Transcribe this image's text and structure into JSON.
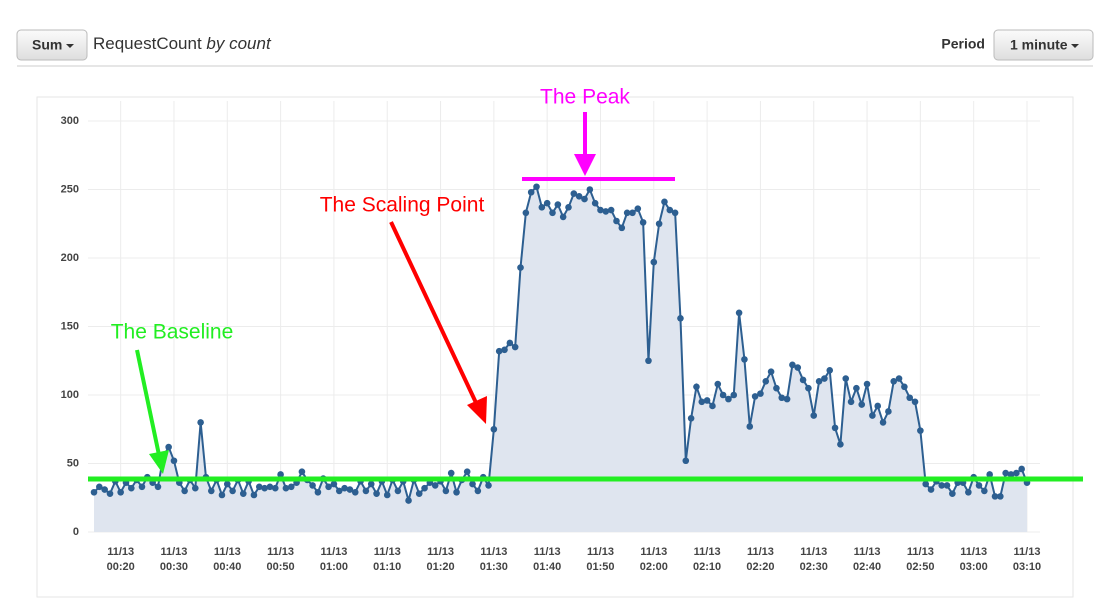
{
  "header": {
    "stat": "Sum",
    "metric": "RequestCount",
    "unit": "by count",
    "period_label": "Period",
    "period": "1 minute"
  },
  "chart_data": {
    "type": "line",
    "annotations": [
      {
        "text": "The Peak",
        "color": "#ff00ff"
      },
      {
        "text": "The Scaling Point",
        "color": "#ff0000"
      },
      {
        "text": "The Baseline",
        "color": "#22ee22"
      }
    ],
    "x": [
      "11/13 00:15",
      "11/13 00:16",
      "11/13 00:17",
      "11/13 00:18",
      "11/13 00:19",
      "11/13 00:20",
      "11/13 00:21",
      "11/13 00:22",
      "11/13 00:23",
      "11/13 00:24",
      "11/13 00:25",
      "11/13 00:26",
      "11/13 00:27",
      "11/13 00:28",
      "11/13 00:29",
      "11/13 00:30",
      "11/13 00:31",
      "11/13 00:32",
      "11/13 00:33",
      "11/13 00:34",
      "11/13 00:35",
      "11/13 00:36",
      "11/13 00:37",
      "11/13 00:38",
      "11/13 00:39",
      "11/13 00:40",
      "11/13 00:41",
      "11/13 00:42",
      "11/13 00:43",
      "11/13 00:44",
      "11/13 00:45",
      "11/13 00:46",
      "11/13 00:47",
      "11/13 00:48",
      "11/13 00:49",
      "11/13 00:50",
      "11/13 00:51",
      "11/13 00:52",
      "11/13 00:53",
      "11/13 00:54",
      "11/13 00:55",
      "11/13 00:56",
      "11/13 00:57",
      "11/13 00:58",
      "11/13 00:59",
      "11/13 01:00",
      "11/13 01:01",
      "11/13 01:02",
      "11/13 01:03",
      "11/13 01:04",
      "11/13 01:05",
      "11/13 01:06",
      "11/13 01:07",
      "11/13 01:08",
      "11/13 01:09",
      "11/13 01:10",
      "11/13 01:11",
      "11/13 01:12",
      "11/13 01:13",
      "11/13 01:14",
      "11/13 01:15",
      "11/13 01:16",
      "11/13 01:17",
      "11/13 01:18",
      "11/13 01:19",
      "11/13 01:20",
      "11/13 01:21",
      "11/13 01:22",
      "11/13 01:23",
      "11/13 01:24",
      "11/13 01:25",
      "11/13 01:26",
      "11/13 01:27",
      "11/13 01:28",
      "11/13 01:29",
      "11/13 01:30",
      "11/13 01:31",
      "11/13 01:32",
      "11/13 01:33",
      "11/13 01:34",
      "11/13 01:35",
      "11/13 01:36",
      "11/13 01:37",
      "11/13 01:38",
      "11/13 01:39",
      "11/13 01:40",
      "11/13 01:41",
      "11/13 01:42",
      "11/13 01:43",
      "11/13 01:44",
      "11/13 01:45",
      "11/13 01:46",
      "11/13 01:47",
      "11/13 01:48",
      "11/13 01:49",
      "11/13 01:50",
      "11/13 01:51",
      "11/13 01:52",
      "11/13 01:53",
      "11/13 01:54",
      "11/13 01:55",
      "11/13 01:56",
      "11/13 01:57",
      "11/13 01:58",
      "11/13 01:59",
      "11/13 02:00",
      "11/13 02:01",
      "11/13 02:02",
      "11/13 02:03",
      "11/13 02:04",
      "11/13 02:05",
      "11/13 02:06",
      "11/13 02:07",
      "11/13 02:08",
      "11/13 02:09",
      "11/13 02:10",
      "11/13 02:11",
      "11/13 02:12",
      "11/13 02:13",
      "11/13 02:14",
      "11/13 02:15",
      "11/13 02:16",
      "11/13 02:17",
      "11/13 02:18",
      "11/13 02:19",
      "11/13 02:20",
      "11/13 02:21",
      "11/13 02:22",
      "11/13 02:23",
      "11/13 02:24",
      "11/13 02:25",
      "11/13 02:26",
      "11/13 02:27",
      "11/13 02:28",
      "11/13 02:29",
      "11/13 02:30",
      "11/13 02:31",
      "11/13 02:32",
      "11/13 02:33",
      "11/13 02:34",
      "11/13 02:35",
      "11/13 02:36",
      "11/13 02:37",
      "11/13 02:38",
      "11/13 02:39",
      "11/13 02:40",
      "11/13 02:41",
      "11/13 02:42",
      "11/13 02:43",
      "11/13 02:44",
      "11/13 02:45",
      "11/13 02:46",
      "11/13 02:47",
      "11/13 02:48",
      "11/13 02:49",
      "11/13 02:50",
      "11/13 02:51",
      "11/13 02:52",
      "11/13 02:53",
      "11/13 02:54",
      "11/13 02:55",
      "11/13 02:56",
      "11/13 02:57",
      "11/13 02:58",
      "11/13 02:59",
      "11/13 03:00",
      "11/13 03:01",
      "11/13 03:02",
      "11/13 03:03",
      "11/13 03:04",
      "11/13 03:05",
      "11/13 03:06",
      "11/13 03:07",
      "11/13 03:08",
      "11/13 03:09",
      "11/13 03:10"
    ],
    "values": [
      29,
      33,
      31,
      28,
      37,
      29,
      36,
      32,
      38,
      33,
      40,
      36,
      33,
      55,
      62,
      52,
      36,
      30,
      38,
      32,
      80,
      40,
      30,
      38,
      27,
      35,
      30,
      38,
      28,
      37,
      27,
      33,
      32,
      33,
      32,
      42,
      32,
      33,
      36,
      44,
      38,
      34,
      29,
      39,
      33,
      35,
      30,
      32,
      31,
      29,
      37,
      30,
      35,
      28,
      37,
      27,
      38,
      30,
      37,
      23,
      38,
      28,
      32,
      36,
      34,
      37,
      30,
      43,
      29,
      38,
      44,
      35,
      30,
      40,
      34,
      75,
      132,
      133,
      138,
      135,
      193,
      233,
      248,
      252,
      237,
      240,
      233,
      239,
      230,
      237,
      247,
      245,
      243,
      250,
      240,
      235,
      234,
      235,
      227,
      222,
      233,
      233,
      236,
      226,
      125,
      197,
      225,
      241,
      235,
      233,
      156,
      52,
      83,
      106,
      95,
      96,
      92,
      108,
      100,
      97,
      100,
      160,
      126,
      77,
      99,
      101,
      110,
      117,
      105,
      98,
      97,
      122,
      120,
      111,
      105,
      85,
      110,
      112,
      118,
      76,
      64,
      112,
      95,
      105,
      93,
      108,
      85,
      92,
      80,
      88,
      110,
      112,
      106,
      98,
      95,
      74,
      35,
      31,
      37,
      34,
      34,
      28,
      36,
      36,
      29,
      40,
      34,
      30,
      42,
      26,
      26,
      43,
      42,
      43,
      46,
      36
    ],
    "color": "#2d5f91",
    "area_color": "#dfe5ef",
    "xticks": [
      "11/13 00:20",
      "11/13 00:30",
      "11/13 00:40",
      "11/13 00:50",
      "11/13 01:00",
      "11/13 01:10",
      "11/13 01:20",
      "11/13 01:30",
      "11/13 01:40",
      "11/13 01:50",
      "11/13 02:00",
      "11/13 02:10",
      "11/13 02:20",
      "11/13 02:30",
      "11/13 02:40",
      "11/13 02:50",
      "11/13 03:00",
      "11/13 03:10"
    ],
    "ylim": [
      0,
      300
    ],
    "yticks": [
      0,
      50,
      100,
      150,
      200,
      250,
      300
    ],
    "grid": true
  }
}
